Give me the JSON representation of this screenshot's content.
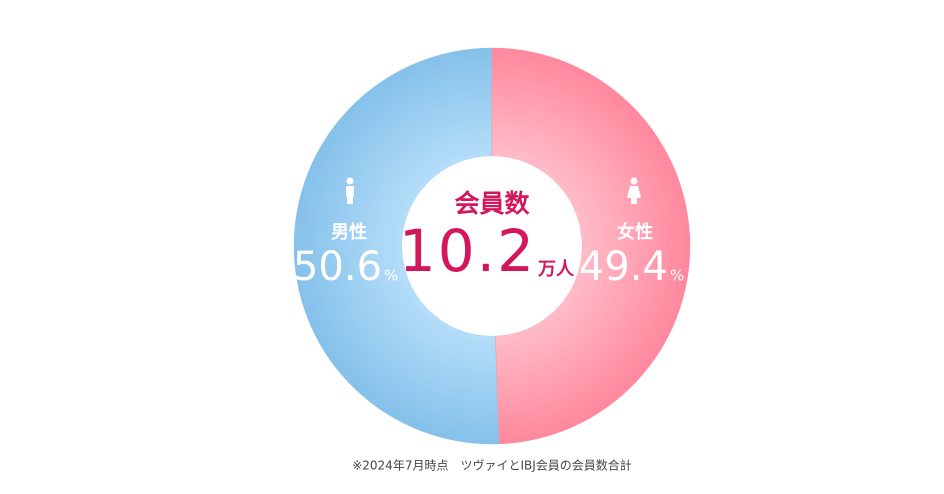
{
  "chart_data": {
    "type": "donut",
    "center": {
      "label": "会員数",
      "value": 10.2,
      "unit": "万人"
    },
    "categories": [
      "男性",
      "女性"
    ],
    "values": [
      50.6,
      49.4
    ],
    "unit": "%",
    "colors": [
      "#8cc5ee",
      "#ff8ea3"
    ],
    "footnote": "※2024年7月時点　ツヴァイとIBJ会員の会員数合計"
  }
}
